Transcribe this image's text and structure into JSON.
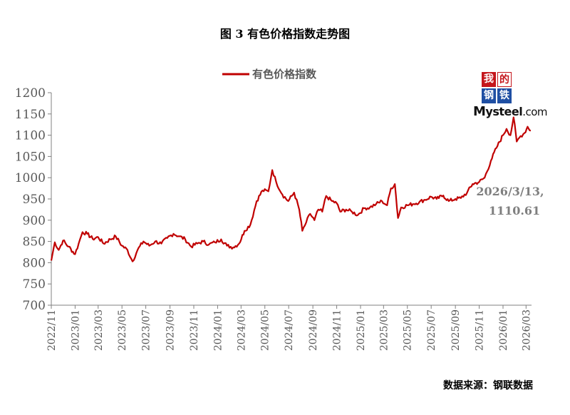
{
  "title": "图 3  有色价格指数走势图",
  "source": "数据来源：钢联数据",
  "logo": {
    "cells": [
      "我",
      "的",
      "钢",
      "铁"
    ],
    "word_m": "M",
    "word_steel": "ysteel",
    "word_com": ".com"
  },
  "colors": {
    "series": "#c00000",
    "axis": "#808080",
    "text": "#595959"
  },
  "chart_data": {
    "type": "line",
    "title": "图 3  有色价格指数走势图",
    "legend_position": "top-center",
    "ylim": [
      700,
      1200
    ],
    "yticks": [
      700,
      750,
      800,
      850,
      900,
      950,
      1000,
      1050,
      1100,
      1150,
      1200
    ],
    "xlim": [
      "2022-11",
      "2026-03"
    ],
    "xticks": [
      "2022/11",
      "2023/01",
      "2023/03",
      "2023/05",
      "2023/07",
      "2023/09",
      "2023/11",
      "2024/01",
      "2024/03",
      "2024/05",
      "2024/07",
      "2024/09",
      "2024/11",
      "2025/01",
      "2025/03",
      "2025/05",
      "2025/07",
      "2025/09",
      "2025/11",
      "2026/01",
      "2026/03"
    ],
    "grid": false,
    "series": [
      {
        "name": "有色价格指数",
        "points": [
          [
            "2022-11-01",
            805
          ],
          [
            "2022-11-10",
            848
          ],
          [
            "2022-11-20",
            830
          ],
          [
            "2022-12-01",
            852
          ],
          [
            "2022-12-15",
            838
          ],
          [
            "2023-01-01",
            820
          ],
          [
            "2023-01-10",
            845
          ],
          [
            "2023-01-20",
            872
          ],
          [
            "2023-02-01",
            868
          ],
          [
            "2023-02-15",
            856
          ],
          [
            "2023-03-01",
            860
          ],
          [
            "2023-03-15",
            845
          ],
          [
            "2023-04-01",
            855
          ],
          [
            "2023-04-15",
            862
          ],
          [
            "2023-05-01",
            840
          ],
          [
            "2023-05-15",
            830
          ],
          [
            "2023-05-28",
            803
          ],
          [
            "2023-06-10",
            830
          ],
          [
            "2023-06-25",
            850
          ],
          [
            "2023-07-10",
            840
          ],
          [
            "2023-07-25",
            850
          ],
          [
            "2023-08-10",
            845
          ],
          [
            "2023-08-25",
            858
          ],
          [
            "2023-09-10",
            868
          ],
          [
            "2023-09-25",
            862
          ],
          [
            "2023-10-10",
            855
          ],
          [
            "2023-10-25",
            838
          ],
          [
            "2023-11-10",
            845
          ],
          [
            "2023-11-25",
            850
          ],
          [
            "2023-12-10",
            843
          ],
          [
            "2023-12-25",
            848
          ],
          [
            "2024-01-10",
            855
          ],
          [
            "2024-01-25",
            840
          ],
          [
            "2024-02-10",
            836
          ],
          [
            "2024-02-25",
            845
          ],
          [
            "2024-03-10",
            875
          ],
          [
            "2024-03-25",
            890
          ],
          [
            "2024-04-10",
            945
          ],
          [
            "2024-04-25",
            970
          ],
          [
            "2024-05-10",
            968
          ],
          [
            "2024-05-20",
            1018
          ],
          [
            "2024-05-30",
            990
          ],
          [
            "2024-06-15",
            960
          ],
          [
            "2024-06-30",
            945
          ],
          [
            "2024-07-15",
            965
          ],
          [
            "2024-07-28",
            925
          ],
          [
            "2024-08-05",
            875
          ],
          [
            "2024-08-15",
            895
          ],
          [
            "2024-08-25",
            915
          ],
          [
            "2024-09-05",
            900
          ],
          [
            "2024-09-15",
            925
          ],
          [
            "2024-09-25",
            920
          ],
          [
            "2024-10-05",
            957
          ],
          [
            "2024-10-20",
            945
          ],
          [
            "2024-11-01",
            940
          ],
          [
            "2024-11-10",
            920
          ],
          [
            "2024-11-25",
            925
          ],
          [
            "2024-12-10",
            920
          ],
          [
            "2024-12-25",
            912
          ],
          [
            "2025-01-10",
            928
          ],
          [
            "2025-01-25",
            930
          ],
          [
            "2025-02-10",
            938
          ],
          [
            "2025-02-25",
            945
          ],
          [
            "2025-03-10",
            935
          ],
          [
            "2025-03-20",
            975
          ],
          [
            "2025-03-30",
            985
          ],
          [
            "2025-04-07",
            905
          ],
          [
            "2025-04-15",
            930
          ],
          [
            "2025-05-01",
            935
          ],
          [
            "2025-05-15",
            938
          ],
          [
            "2025-06-01",
            943
          ],
          [
            "2025-06-15",
            948
          ],
          [
            "2025-07-01",
            955
          ],
          [
            "2025-07-15",
            950
          ],
          [
            "2025-08-01",
            958
          ],
          [
            "2025-08-15",
            945
          ],
          [
            "2025-09-01",
            950
          ],
          [
            "2025-09-15",
            952
          ],
          [
            "2025-10-01",
            965
          ],
          [
            "2025-10-15",
            985
          ],
          [
            "2025-11-01",
            990
          ],
          [
            "2025-11-15",
            1000
          ],
          [
            "2025-12-01",
            1040
          ],
          [
            "2025-12-15",
            1070
          ],
          [
            "2026-01-01",
            1100
          ],
          [
            "2026-01-10",
            1115
          ],
          [
            "2026-01-20",
            1100
          ],
          [
            "2026-01-28",
            1142
          ],
          [
            "2026-02-05",
            1085
          ],
          [
            "2026-02-15",
            1098
          ],
          [
            "2026-02-25",
            1105
          ],
          [
            "2026-03-05",
            1120
          ],
          [
            "2026-03-13",
            1110.61
          ]
        ]
      }
    ],
    "annotation": {
      "date": "2026/3/13,",
      "value": "1110.61"
    }
  }
}
